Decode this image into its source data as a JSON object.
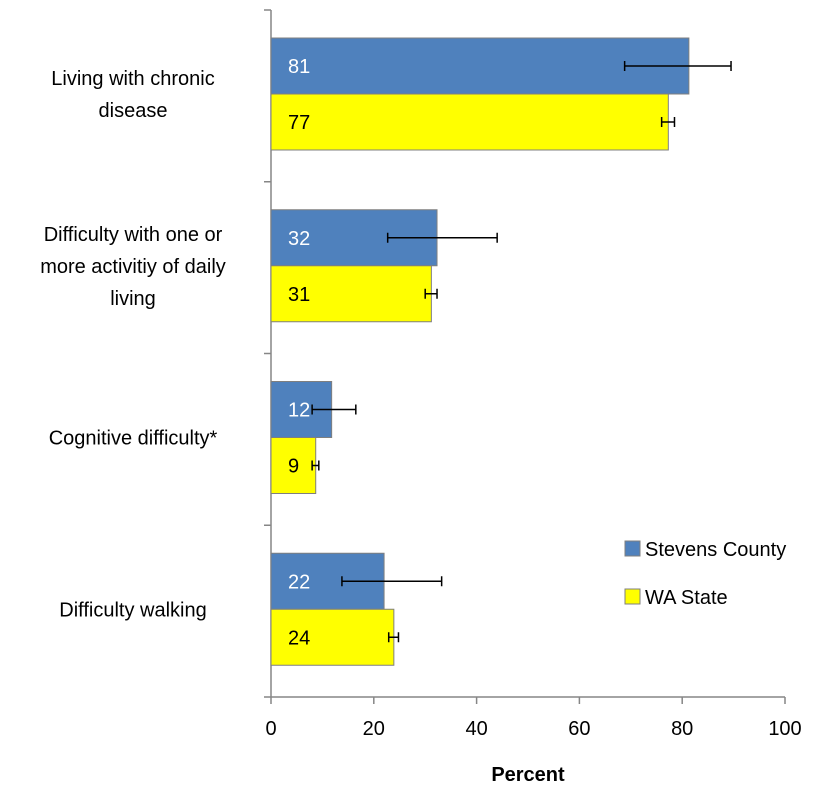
{
  "chart_data": {
    "type": "bar",
    "orientation": "horizontal",
    "xlabel": "Percent",
    "xlim": [
      0,
      100
    ],
    "xticks": [
      "0",
      "20",
      "40",
      "60",
      "80",
      "100"
    ],
    "categories": [
      [
        "Living with chronic",
        "disease"
      ],
      [
        "Difficulty with one or",
        "more activitiy of daily",
        "living"
      ],
      [
        "Cognitive difficulty*"
      ],
      [
        "Difficulty walking"
      ]
    ],
    "series": [
      {
        "name": "Stevens County",
        "color": "#4f81bd",
        "label_color": "#ffffff",
        "values": [
          81.3,
          32.3,
          11.8,
          22.0
        ],
        "labels": [
          "81",
          "32",
          "12",
          "22"
        ],
        "error_low": [
          68.8,
          22.7,
          8.0,
          13.8
        ],
        "error_high": [
          89.5,
          44.0,
          16.5,
          33.2
        ]
      },
      {
        "name": "WA State",
        "color": "#ffff00",
        "label_color": "#000000",
        "values": [
          77.3,
          31.2,
          8.7,
          23.9
        ],
        "labels": [
          "77",
          "31",
          "9",
          "24"
        ],
        "error_low": [
          76.0,
          30.0,
          8.0,
          22.9
        ],
        "error_high": [
          78.5,
          32.3,
          9.3,
          24.8
        ]
      }
    ],
    "legend_position": "bottom-right",
    "error_bar_color": "#000000"
  }
}
